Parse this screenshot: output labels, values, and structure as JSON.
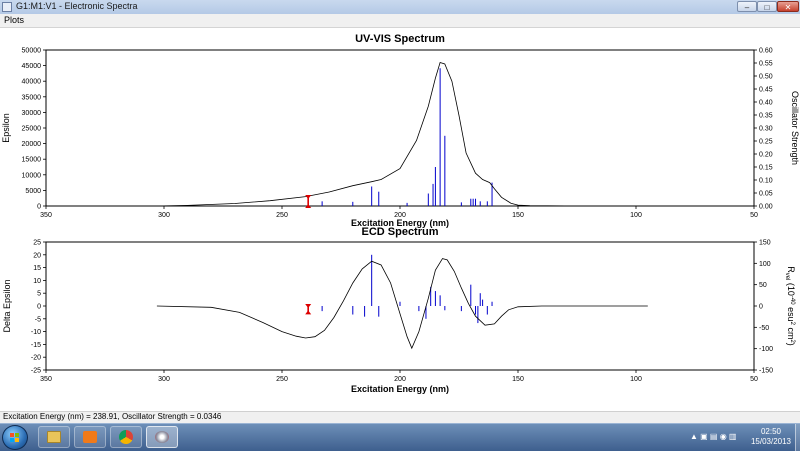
{
  "window": {
    "title": "G1:M1:V1 - Electronic Spectra",
    "minimize_glyph": "–",
    "maximize_glyph": "□",
    "close_glyph": "✕"
  },
  "menu": {
    "plots_label": "Plots"
  },
  "status": {
    "text": "Excitation Energy (nm) = 238.91, Oscillator Strength = 0.0346"
  },
  "colors": {
    "curve": "#000000",
    "sticks": "#0000cc",
    "marker": "#dd0000",
    "plot_border": "#000000"
  },
  "taskbar": {
    "clock_time": "02:50",
    "clock_date": "15/03/2013",
    "icons": [
      "windows-start-icon",
      "explorer-icon",
      "media-player-icon",
      "chrome-icon",
      "gaussview-icon"
    ]
  },
  "chart_data": [
    {
      "type": "line",
      "title": "UV-VIS Spectrum",
      "xlabel": "Excitation Energy (nm)",
      "ylabel": "Epsilon",
      "y2label": "Oscillator Strength",
      "xlim": [
        350,
        50
      ],
      "x_reversed": true,
      "ylim": [
        0,
        50000
      ],
      "y2lim": [
        0,
        0.6
      ],
      "x_ticks": [
        350,
        300,
        250,
        200,
        150,
        100,
        50
      ],
      "y_ticks": [
        0,
        5000,
        10000,
        15000,
        20000,
        25000,
        30000,
        35000,
        40000,
        45000,
        50000
      ],
      "y2_ticks": [
        "0.00",
        "0.05",
        "0.10",
        "0.15",
        "0.20",
        "0.25",
        "0.30",
        "0.35",
        "0.40",
        "0.45",
        "0.50",
        "0.55",
        "0.60"
      ],
      "curve": {
        "x": [
          303,
          290,
          270,
          255,
          240,
          230,
          220,
          212,
          208,
          200,
          193,
          188,
          185,
          183,
          181,
          178,
          175,
          172,
          168,
          165,
          162,
          160,
          157,
          153,
          150,
          145,
          130,
          110,
          95
        ],
        "y": [
          0,
          200,
          800,
          1700,
          3000,
          4500,
          6500,
          7800,
          8500,
          12000,
          21000,
          32000,
          41000,
          46000,
          45500,
          40000,
          29000,
          17000,
          10500,
          8500,
          7500,
          5500,
          2800,
          900,
          300,
          100,
          20,
          5,
          0
        ]
      },
      "sticks": {
        "x": [
          238.9,
          233,
          220,
          212,
          209,
          197,
          188,
          186,
          185,
          183,
          181,
          174,
          170,
          169,
          168,
          166,
          163,
          161
        ],
        "y": [
          0.0346,
          0.018,
          0.016,
          0.075,
          0.055,
          0.012,
          0.048,
          0.085,
          0.15,
          0.53,
          0.27,
          0.014,
          0.028,
          0.028,
          0.028,
          0.018,
          0.018,
          0.09
        ]
      },
      "selected_marker": {
        "x": 238.91,
        "y": 0.0346
      }
    },
    {
      "type": "line",
      "title": "ECD Spectrum",
      "xlabel": "Excitation Energy (nm)",
      "ylabel": "Delta Epsilon",
      "y2label_parts": {
        "r": "R",
        "vel": "vel",
        "mid": " (10",
        "exp": "-40",
        "unit": " esu",
        "sq": "2",
        "tail": " cm",
        "sq2": "2",
        "end": ")"
      },
      "xlim": [
        350,
        50
      ],
      "x_reversed": true,
      "ylim": [
        -25,
        25
      ],
      "y2lim": [
        -150,
        150
      ],
      "x_ticks": [
        350,
        300,
        250,
        200,
        150,
        100,
        50
      ],
      "y_ticks": [
        -25,
        -20,
        -15,
        -10,
        -5,
        0,
        5,
        10,
        15,
        20,
        25
      ],
      "y2_ticks": [
        -150,
        -100,
        -50,
        0,
        50,
        100,
        150
      ],
      "curve": {
        "x": [
          303,
          280,
          268,
          258,
          250,
          244,
          240,
          236,
          232,
          228,
          224,
          220,
          216,
          212,
          208,
          204,
          200,
          197,
          195,
          192,
          188,
          185,
          182,
          180,
          177,
          174,
          171,
          168,
          164,
          160,
          157,
          154,
          150,
          140,
          120,
          95
        ],
        "y": [
          0,
          -0.5,
          -2.5,
          -6.5,
          -10,
          -11.8,
          -12.5,
          -12.0,
          -9.5,
          -4.5,
          2,
          9,
          14.5,
          17.5,
          16,
          9,
          -3,
          -12,
          -16.5,
          -10,
          3,
          14,
          18.5,
          18,
          13.5,
          7,
          1,
          -4,
          -7.5,
          -7,
          -4,
          -1.5,
          -0.3,
          0,
          0,
          0
        ]
      },
      "sticks": {
        "x": [
          238.9,
          233,
          220,
          215,
          212,
          209,
          200,
          192,
          189,
          187,
          185,
          183,
          181,
          174,
          170,
          168,
          167,
          166,
          165,
          163,
          161
        ],
        "y": [
          -15,
          -12,
          -20,
          -25,
          120,
          -25,
          10,
          -12,
          -30,
          45,
          35,
          25,
          -10,
          -12,
          50,
          -20,
          -40,
          30,
          15,
          -20,
          10
        ]
      },
      "selected_marker": {
        "x": 238.91,
        "y": -15
      }
    }
  ]
}
